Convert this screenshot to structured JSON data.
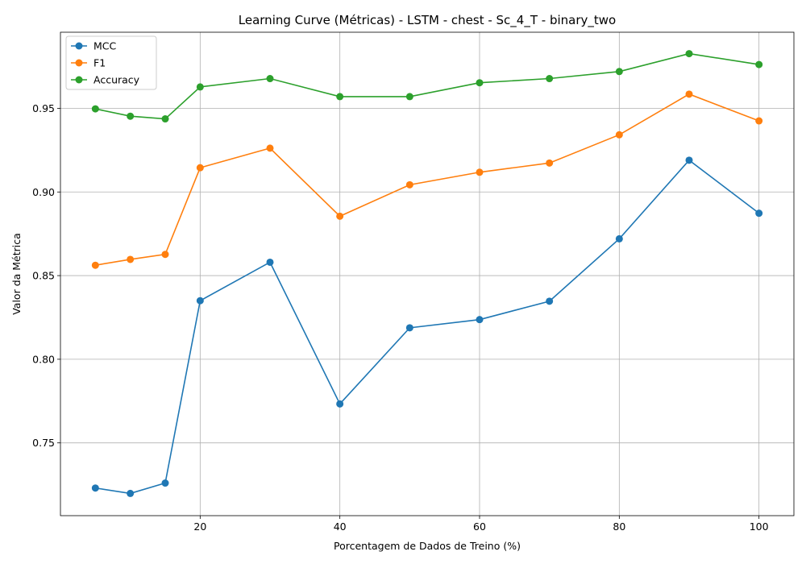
{
  "chart_data": {
    "type": "line",
    "title": "Learning Curve (Métricas) - LSTM - chest - Sc_4_T - binary_two",
    "xlabel": "Porcentagem de Dados de Treino (%)",
    "ylabel": "Valor da Métrica",
    "x": [
      5,
      10,
      15,
      20,
      30,
      40,
      50,
      60,
      70,
      80,
      90,
      100
    ],
    "xlim": [
      0,
      105
    ],
    "ylim": [
      0.7065,
      0.9955
    ],
    "xticks": [
      20,
      40,
      60,
      80,
      100
    ],
    "xtick_labels": [
      "20",
      "40",
      "60",
      "80",
      "100"
    ],
    "yticks": [
      0.75,
      0.8,
      0.85,
      0.9,
      0.95
    ],
    "ytick_labels": [
      "0.75",
      "0.80",
      "0.85",
      "0.90",
      "0.95"
    ],
    "grid": true,
    "legend_position": "upper-left",
    "series": [
      {
        "name": "MCC",
        "color": "#1f77b4",
        "values": [
          0.723,
          0.7198,
          0.726,
          0.835,
          0.858,
          0.7733,
          0.8188,
          0.8237,
          0.8347,
          0.872,
          0.919,
          0.8873
        ]
      },
      {
        "name": "F1",
        "color": "#ff7f0e",
        "values": [
          0.8562,
          0.8597,
          0.8627,
          0.9145,
          0.9262,
          0.8855,
          0.9043,
          0.9118,
          0.9173,
          0.9342,
          0.9585,
          0.9425
        ]
      },
      {
        "name": "Accuracy",
        "color": "#2ca02c",
        "values": [
          0.9497,
          0.9453,
          0.9437,
          0.9628,
          0.9678,
          0.957,
          0.957,
          0.9653,
          0.9678,
          0.972,
          0.9827,
          0.9762
        ]
      }
    ]
  }
}
